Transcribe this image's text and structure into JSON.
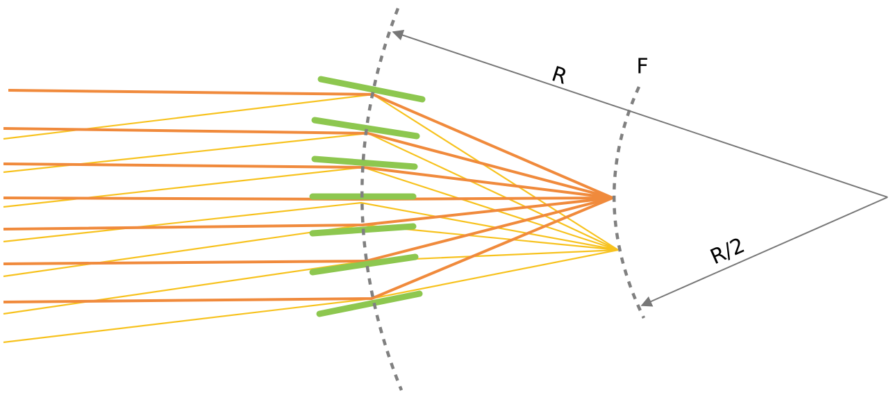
{
  "labels": {
    "radius": "R",
    "focus": "F",
    "half_radius": "R/2"
  }
}
